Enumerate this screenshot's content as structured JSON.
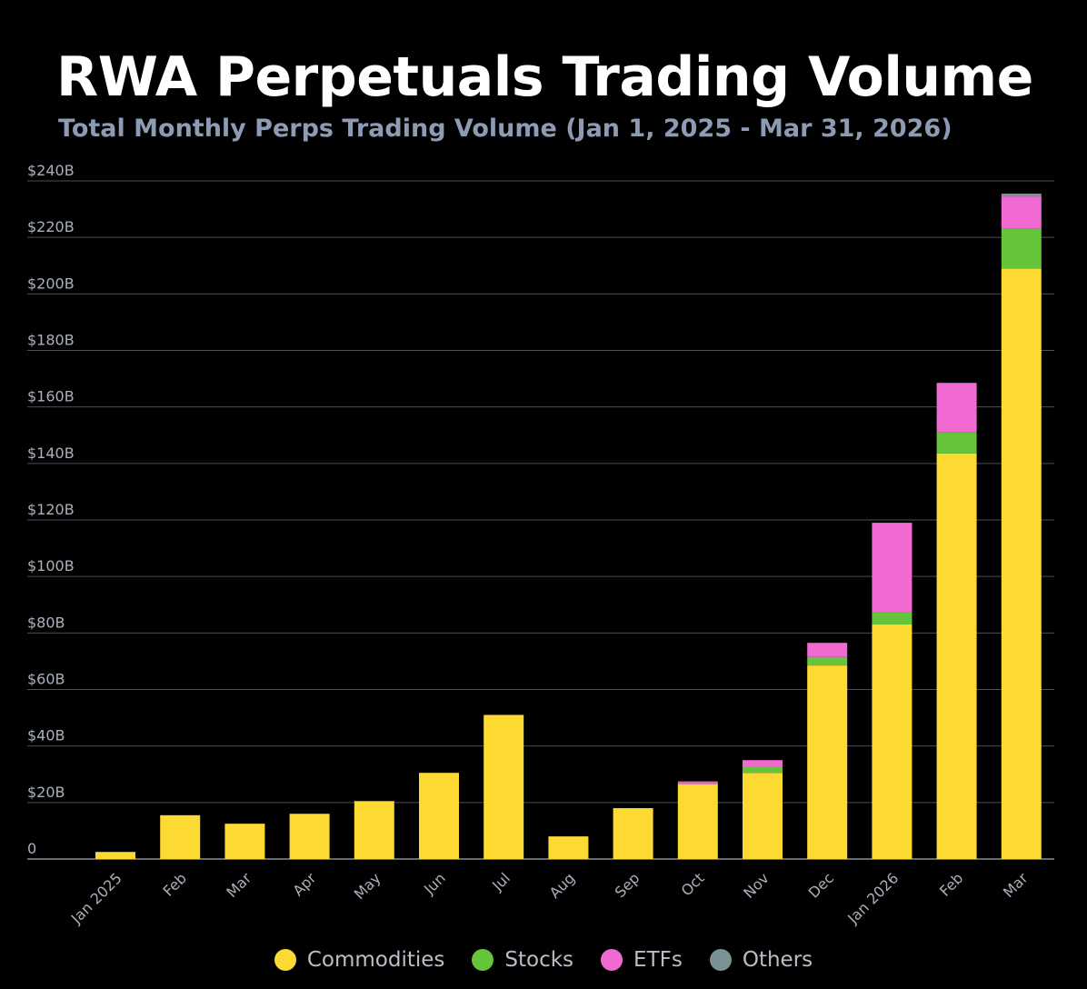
{
  "chart_data": {
    "type": "bar",
    "stacked": true,
    "title": "RWA Perpetuals Trading Volume",
    "subtitle": "Total Monthly Perps Trading Volume (Jan 1, 2025 - Mar 31, 2026)",
    "xlabel": "",
    "ylabel": "",
    "ylim": [
      0,
      240
    ],
    "y_ticks": [
      0,
      20,
      40,
      60,
      80,
      100,
      120,
      140,
      160,
      180,
      200,
      220,
      240
    ],
    "y_tick_labels": [
      "0",
      "$20B",
      "$40B",
      "$60B",
      "$80B",
      "$100B",
      "$120B",
      "$140B",
      "$160B",
      "$180B",
      "$200B",
      "$220B",
      "$240B"
    ],
    "grid": true,
    "legend_position": "bottom-center",
    "categories": [
      "Jan 2025",
      "Feb",
      "Mar",
      "Apr",
      "May",
      "Jun",
      "Jul",
      "Aug",
      "Sep",
      "Oct",
      "Nov",
      "Dec",
      "Jan 2026",
      "Feb",
      "Mar"
    ],
    "series": [
      {
        "name": "Commodities",
        "color": "#fdda32",
        "values": [
          2.5,
          15.5,
          12.5,
          16,
          20.5,
          30.5,
          51,
          8,
          18,
          26.5,
          30.5,
          68.5,
          83,
          143.5,
          209
        ]
      },
      {
        "name": "Stocks",
        "color": "#66c43b",
        "values": [
          0,
          0,
          0,
          0,
          0,
          0,
          0,
          0,
          0,
          0,
          2,
          3,
          4.5,
          7.5,
          14
        ]
      },
      {
        "name": "ETFs",
        "color": "#f06ad2",
        "values": [
          0,
          0,
          0,
          0,
          0,
          0,
          0,
          0,
          0,
          0.8,
          2.5,
          5,
          31.5,
          17.5,
          11.5
        ]
      },
      {
        "name": "Others",
        "color": "#7a9294",
        "values": [
          0,
          0,
          0,
          0,
          0,
          0,
          0,
          0,
          0,
          0.2,
          0,
          0,
          0,
          0,
          1
        ]
      }
    ]
  },
  "colors": {
    "background": "#000000",
    "grid": "#4a4e55",
    "axis_text": "#aab0bb",
    "title": "#ffffff",
    "subtitle": "#8d9bb5"
  }
}
